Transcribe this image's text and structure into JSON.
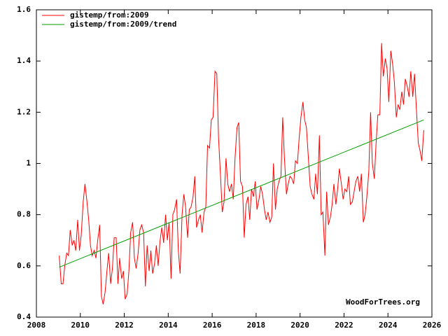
{
  "chart_data": {
    "type": "line",
    "xlim": [
      2008,
      2026
    ],
    "ylim": [
      0.4,
      1.6
    ],
    "xticks": [
      2008,
      2010,
      2012,
      2014,
      2016,
      2018,
      2020,
      2022,
      2024,
      2026
    ],
    "yticks": [
      0.4,
      0.6,
      0.8,
      1,
      1.2,
      1.4,
      1.6
    ],
    "grid": false,
    "legend": "top-left",
    "watermark": "WoodForTrees.org",
    "series": [
      {
        "name": "gistemp/from:2009",
        "color": "#ff0000",
        "x": [
          2009.04,
          2009.13,
          2009.21,
          2009.29,
          2009.38,
          2009.46,
          2009.54,
          2009.63,
          2009.71,
          2009.79,
          2009.88,
          2009.96,
          2010.04,
          2010.13,
          2010.21,
          2010.29,
          2010.38,
          2010.46,
          2010.54,
          2010.63,
          2010.71,
          2010.79,
          2010.88,
          2010.96,
          2011.04,
          2011.13,
          2011.21,
          2011.29,
          2011.38,
          2011.46,
          2011.54,
          2011.63,
          2011.71,
          2011.79,
          2011.88,
          2011.96,
          2012.04,
          2012.13,
          2012.21,
          2012.29,
          2012.38,
          2012.46,
          2012.54,
          2012.63,
          2012.71,
          2012.79,
          2012.88,
          2012.96,
          2013.04,
          2013.13,
          2013.21,
          2013.29,
          2013.38,
          2013.46,
          2013.54,
          2013.63,
          2013.71,
          2013.79,
          2013.88,
          2013.96,
          2014.04,
          2014.13,
          2014.21,
          2014.29,
          2014.38,
          2014.46,
          2014.54,
          2014.63,
          2014.71,
          2014.79,
          2014.88,
          2014.96,
          2015.04,
          2015.13,
          2015.21,
          2015.29,
          2015.38,
          2015.46,
          2015.54,
          2015.63,
          2015.71,
          2015.79,
          2015.88,
          2015.96,
          2016.04,
          2016.13,
          2016.21,
          2016.29,
          2016.38,
          2016.46,
          2016.54,
          2016.63,
          2016.71,
          2016.79,
          2016.88,
          2016.96,
          2017.04,
          2017.13,
          2017.21,
          2017.29,
          2017.38,
          2017.46,
          2017.54,
          2017.63,
          2017.71,
          2017.79,
          2017.88,
          2017.96,
          2018.04,
          2018.13,
          2018.21,
          2018.29,
          2018.38,
          2018.46,
          2018.54,
          2018.63,
          2018.71,
          2018.79,
          2018.88,
          2018.96,
          2019.04,
          2019.13,
          2019.21,
          2019.29,
          2019.38,
          2019.46,
          2019.54,
          2019.63,
          2019.71,
          2019.79,
          2019.88,
          2019.96,
          2020.04,
          2020.13,
          2020.21,
          2020.29,
          2020.38,
          2020.46,
          2020.54,
          2020.63,
          2020.71,
          2020.79,
          2020.88,
          2020.96,
          2021.04,
          2021.13,
          2021.21,
          2021.29,
          2021.38,
          2021.46,
          2021.54,
          2021.63,
          2021.71,
          2021.79,
          2021.88,
          2021.96,
          2022.04,
          2022.13,
          2022.21,
          2022.29,
          2022.38,
          2022.46,
          2022.54,
          2022.63,
          2022.71,
          2022.79,
          2022.88,
          2022.96,
          2023.04,
          2023.13,
          2023.21,
          2023.29,
          2023.38,
          2023.46,
          2023.54,
          2023.63,
          2023.71,
          2023.79,
          2023.88,
          2023.96,
          2024.04,
          2024.13,
          2024.21,
          2024.29,
          2024.38,
          2024.46,
          2024.54,
          2024.63,
          2024.71,
          2024.79,
          2024.88,
          2024.96,
          2025.04,
          2025.13,
          2025.21,
          2025.29,
          2025.38,
          2025.46,
          2025.54,
          2025.63
        ],
        "values": [
          0.64,
          0.53,
          0.53,
          0.6,
          0.65,
          0.64,
          0.74,
          0.68,
          0.7,
          0.66,
          0.78,
          0.66,
          0.72,
          0.85,
          0.92,
          0.86,
          0.78,
          0.68,
          0.64,
          0.66,
          0.63,
          0.7,
          0.76,
          0.48,
          0.45,
          0.5,
          0.58,
          0.65,
          0.53,
          0.59,
          0.71,
          0.71,
          0.53,
          0.63,
          0.55,
          0.58,
          0.47,
          0.49,
          0.58,
          0.73,
          0.77,
          0.63,
          0.59,
          0.65,
          0.74,
          0.76,
          0.73,
          0.52,
          0.68,
          0.58,
          0.66,
          0.57,
          0.61,
          0.68,
          0.6,
          0.7,
          0.75,
          0.69,
          0.8,
          0.7,
          0.77,
          0.55,
          0.8,
          0.82,
          0.86,
          0.66,
          0.57,
          0.8,
          0.88,
          0.83,
          0.71,
          0.82,
          0.83,
          0.87,
          0.95,
          0.75,
          0.78,
          0.8,
          0.73,
          0.81,
          0.83,
          1.07,
          1.06,
          1.17,
          1.18,
          1.36,
          1.35,
          1.1,
          0.95,
          0.81,
          0.85,
          1.02,
          0.92,
          0.89,
          0.92,
          0.86,
          1.02,
          1.14,
          1.16,
          0.93,
          0.91,
          0.71,
          0.84,
          0.87,
          0.78,
          0.9,
          0.87,
          0.93,
          0.82,
          0.86,
          0.91,
          0.88,
          0.82,
          0.78,
          0.81,
          0.77,
          0.79,
          1.0,
          0.82,
          0.9,
          0.93,
          0.95,
          1.18,
          1.02,
          0.88,
          0.92,
          0.95,
          0.94,
          0.92,
          1.01,
          1.0,
          1.1,
          1.18,
          1.24,
          1.17,
          1.14,
          1.02,
          0.91,
          0.88,
          0.86,
          0.96,
          0.88,
          1.11,
          0.8,
          0.81,
          0.64,
          0.89,
          0.76,
          0.79,
          0.84,
          0.92,
          0.84,
          0.9,
          0.98,
          0.92,
          0.86,
          0.9,
          0.89,
          0.95,
          0.84,
          0.85,
          0.89,
          0.93,
          0.95,
          0.89,
          0.96,
          0.77,
          0.8,
          0.87,
          0.97,
          1.2,
          1.0,
          0.94,
          1.08,
          1.19,
          1.19,
          1.47,
          1.34,
          1.41,
          1.37,
          1.24,
          1.44,
          1.39,
          1.32,
          1.18,
          1.23,
          1.21,
          1.28,
          1.23,
          1.33,
          1.3,
          1.26,
          1.36,
          1.26,
          1.35,
          1.22,
          1.08,
          1.05,
          1.01,
          1.13
        ]
      },
      {
        "name": "gistemp/from:2009/trend",
        "color": "#00a000",
        "x": [
          2009.04,
          2025.63
        ],
        "values": [
          0.595,
          1.17
        ]
      }
    ]
  }
}
